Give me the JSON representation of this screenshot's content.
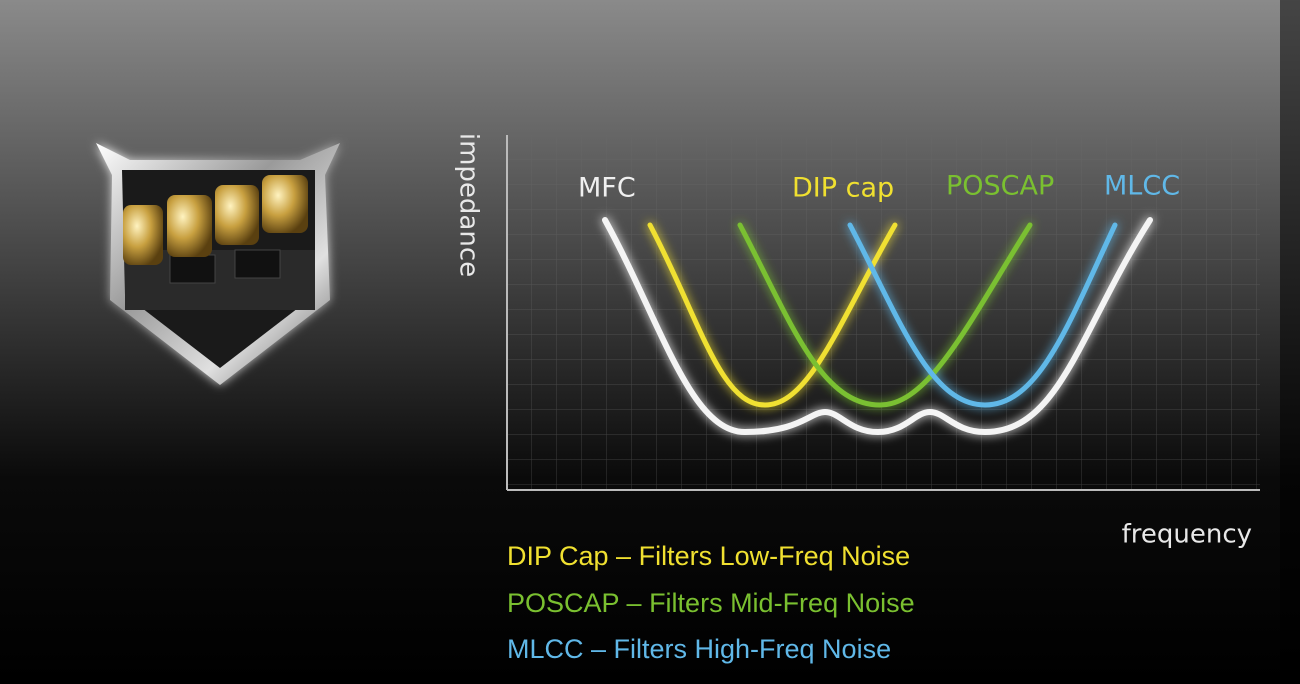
{
  "axes": {
    "y_label": "impedance",
    "x_label": "frequency"
  },
  "curves": [
    {
      "label": "MFC"
    },
    {
      "label": "DIP cap"
    },
    {
      "label": "POSCAP"
    },
    {
      "label": "MLCC"
    }
  ],
  "legend": [
    "DIP Cap – Filters Low-Freq Noise",
    "POSCAP – Filters Mid-Freq Noise",
    "MLCC – Filters High-Freq Noise"
  ]
}
